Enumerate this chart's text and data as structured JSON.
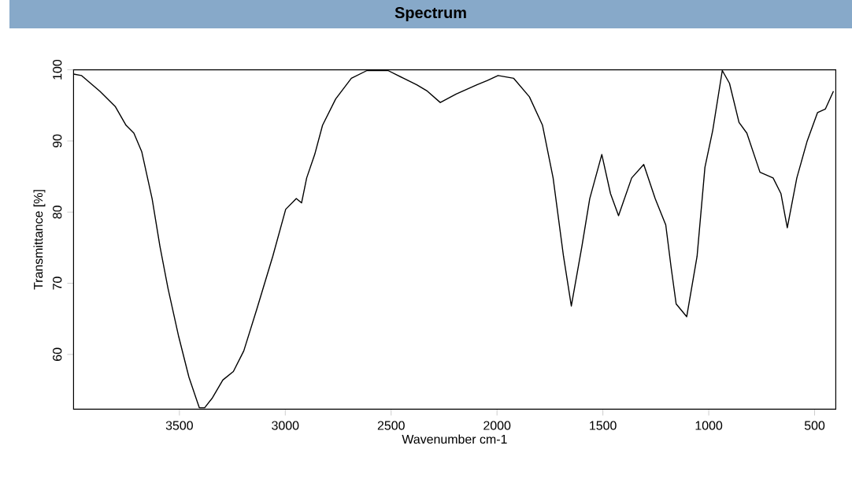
{
  "chart_data": {
    "type": "line",
    "title": "Spectrum",
    "xlabel": "Wavenumber cm-1",
    "ylabel": "Transmittance [%]",
    "xlim": [
      4000,
      400
    ],
    "ylim": [
      52.3,
      100
    ],
    "xticks": [
      3500,
      3000,
      2500,
      2000,
      1500,
      1000,
      500
    ],
    "yticks": [
      60,
      70,
      80,
      90,
      100
    ],
    "grid": false,
    "marker": "none",
    "line_style": "solid",
    "series": [
      {
        "color": "#000000",
        "x": [
          4000,
          3963,
          3876,
          3802,
          3752,
          3715,
          3678,
          3629,
          3592,
          3554,
          3505,
          3455,
          3406,
          3381,
          3344,
          3295,
          3245,
          3196,
          3134,
          3059,
          2998,
          2948,
          2923,
          2899,
          2861,
          2824,
          2762,
          2688,
          2614,
          2515,
          2441,
          2379,
          2329,
          2268,
          2193,
          2095,
          2045,
          1995,
          1921,
          1847,
          1785,
          1735,
          1686,
          1649,
          1599,
          1562,
          1505,
          1464,
          1426,
          1364,
          1307,
          1253,
          1203,
          1178,
          1154,
          1104,
          1055,
          1018,
          981,
          936,
          902,
          857,
          820,
          758,
          696,
          659,
          629,
          584,
          535,
          486,
          449,
          411
        ],
        "values": [
          99.4,
          99.2,
          97.0,
          94.8,
          92.2,
          91.1,
          88.5,
          81.9,
          75.2,
          69.3,
          62.7,
          56.8,
          52.5,
          52.5,
          53.9,
          56.4,
          57.6,
          60.5,
          66.4,
          73.8,
          80.4,
          81.9,
          81.3,
          84.8,
          88.1,
          92.2,
          95.9,
          98.8,
          99.9,
          99.9,
          98.8,
          97.9,
          97.0,
          95.4,
          96.6,
          97.9,
          98.5,
          99.2,
          98.8,
          96.2,
          92.2,
          84.8,
          73.8,
          66.8,
          75.2,
          81.9,
          88.1,
          82.6,
          79.5,
          84.8,
          86.7,
          81.9,
          78.2,
          72.3,
          67.1,
          65.3,
          73.8,
          86.3,
          91.5,
          99.9,
          98.1,
          92.6,
          91.1,
          85.6,
          84.8,
          82.6,
          77.8,
          84.8,
          90.0,
          94.0,
          94.5,
          97.0
        ]
      }
    ]
  }
}
